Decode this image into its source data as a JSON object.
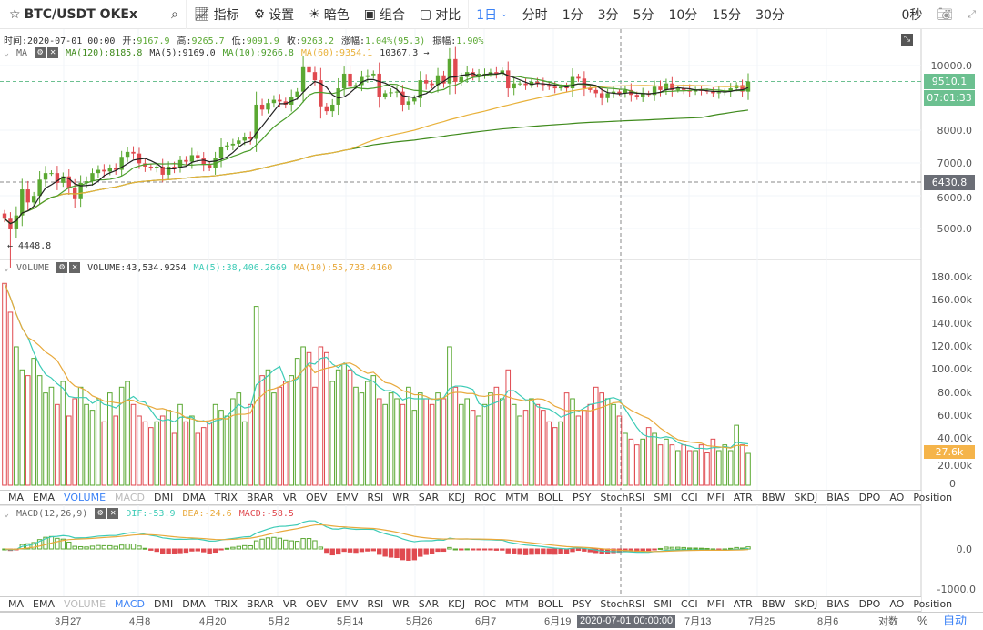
{
  "toolbar": {
    "star_icon": "star-icon",
    "symbol": "BTC/USDT OKEx",
    "search_icon": "search-icon",
    "indicators": "指标",
    "settings": "设置",
    "dark": "暗色",
    "combo": "组合",
    "compare": "对比",
    "interval": "1日",
    "intervals": [
      "分时",
      "1分",
      "3分",
      "5分",
      "10分",
      "15分",
      "30分"
    ],
    "countdown": "0秒",
    "camera_icon": "camera-icon",
    "fullscreen_icon": "fullscreen-icon"
  },
  "info": {
    "time_label": "时间:",
    "time": "2020-07-01 00:00",
    "open_label": "开:",
    "open": "9167.9",
    "high_label": "高:",
    "high": "9265.7",
    "low_label": "低:",
    "low": "9091.9",
    "close_label": "收:",
    "close": "9263.2",
    "change_label": "涨幅:",
    "change": "1.04%(95.3)",
    "amp_label": "振幅:",
    "amp": "1.90%"
  },
  "ma_legend": {
    "name": "MA",
    "ma120": "MA(120):8185.8",
    "ma5": "MA(5):9169.0",
    "ma10": "MA(10):9266.8",
    "ma60": "MA(60):9354.1",
    "max_marker": "10367.3 →",
    "min_marker": "← 4448.8"
  },
  "price_axis": {
    "ticks": [
      "10000.0",
      "8000.0",
      "7000.0",
      "6000.0",
      "5000.0"
    ],
    "last_price": "9510.1",
    "countdown": "07:01:33",
    "crosshair_price": "6430.8"
  },
  "volume_legend": {
    "name": "VOLUME",
    "volume": "VOLUME:43,534.9254",
    "ma5": "MA(5):38,406.2669",
    "ma10": "MA(10):55,733.4160"
  },
  "volume_axis": {
    "ticks": [
      "180.00k",
      "160.00k",
      "140.00k",
      "120.00k",
      "100.00k",
      "80.00k",
      "60.00k",
      "40.00k",
      "20.00k",
      "0"
    ],
    "last": "27.6k"
  },
  "indicator_tabs": [
    "MA",
    "EMA",
    "VOLUME",
    "MACD",
    "DMI",
    "DMA",
    "TRIX",
    "BRAR",
    "VR",
    "OBV",
    "EMV",
    "RSI",
    "WR",
    "SAR",
    "KDJ",
    "ROC",
    "MTM",
    "BOLL",
    "PSY",
    "StochRSI",
    "SMI",
    "CCI",
    "MFI",
    "ATR",
    "BBW",
    "SKDJ",
    "BIAS",
    "DPO",
    "AO",
    "Position"
  ],
  "macd_legend": {
    "name": "MACD(12,26,9)",
    "dif": "DIF:-53.9",
    "dea": "DEA:-24.6",
    "macd": "MACD:-58.5"
  },
  "macd_axis": {
    "ticks": [
      "0.0",
      "-1000.0"
    ]
  },
  "time_axis": {
    "ticks": [
      "3月27",
      "4月8",
      "4月20",
      "5月2",
      "5月14",
      "5月26",
      "6月7",
      "6月19",
      "7月13",
      "7月25",
      "8月6"
    ],
    "crosshair": "2020-07-01 00:00:00",
    "log": "对数",
    "percent": "%",
    "auto": "自动"
  },
  "colors": {
    "up": "#5aa832",
    "down": "#e04a50",
    "ma5": "#222222",
    "ma10": "#4c9e2c",
    "ma60": "#e8b13a",
    "ma120": "#3f8a1c",
    "vol_ma5": "#3ccbb6",
    "vol_ma10": "#e8a93c",
    "accent": "#3b82f6"
  },
  "chart_data": {
    "type": "candlestick",
    "closes": [
      5300,
      5000,
      5400,
      6200,
      5800,
      6000,
      6500,
      6700,
      6700,
      6400,
      6600,
      6250,
      5900,
      6400,
      6450,
      6700,
      6800,
      6750,
      6850,
      6800,
      7200,
      7350,
      7300,
      7000,
      6900,
      6850,
      6900,
      6650,
      6900,
      6850,
      7100,
      7050,
      7250,
      7150,
      6950,
      6850,
      7150,
      7500,
      7550,
      7600,
      7700,
      7800,
      7750,
      8800,
      8650,
      8850,
      8950,
      8900,
      8800,
      9050,
      9200,
      9950,
      9800,
      9550,
      8750,
      8600,
      8800,
      9300,
      9750,
      9350,
      9400,
      9650,
      9700,
      9750,
      9050,
      9150,
      9180,
      9200,
      8800,
      8900,
      9000,
      9550,
      9450,
      9400,
      9700,
      9450,
      10200,
      9500,
      9650,
      9800,
      9650,
      9750,
      9750,
      9800,
      9750,
      9850,
      9300,
      9450,
      9450,
      9400,
      9500,
      9450,
      9400,
      9350,
      9300,
      9350,
      9300,
      9650,
      9600,
      9300,
      9250,
      9150,
      9000,
      9150,
      9200,
      9150,
      9250,
      9100,
      9050,
      9150,
      9100,
      9350,
      9250,
      9450,
      9250,
      9300,
      9250,
      9200,
      9250,
      9230,
      9200,
      9150,
      9180,
      9200,
      9300,
      9400,
      9200,
      9510
    ],
    "volumes_k": [
      175,
      150,
      120,
      100,
      95,
      110,
      95,
      80,
      85,
      70,
      90,
      60,
      75,
      85,
      70,
      65,
      75,
      55,
      80,
      60,
      85,
      90,
      70,
      60,
      55,
      50,
      55,
      60,
      65,
      45,
      70,
      55,
      60,
      45,
      50,
      55,
      70,
      65,
      60,
      75,
      80,
      55,
      70,
      155,
      95,
      100,
      80,
      85,
      90,
      95,
      110,
      120,
      115,
      85,
      120,
      115,
      90,
      100,
      105,
      100,
      85,
      80,
      90,
      95,
      75,
      70,
      80,
      75,
      70,
      85,
      65,
      80,
      75,
      70,
      80,
      75,
      120,
      85,
      70,
      75,
      65,
      60,
      70,
      80,
      85,
      75,
      100,
      70,
      60,
      65,
      75,
      70,
      65,
      55,
      50,
      55,
      80,
      75,
      60,
      65,
      70,
      85,
      80,
      75,
      70,
      60,
      45,
      40,
      35,
      40,
      50,
      45,
      35,
      40,
      35,
      30,
      35,
      30,
      30,
      35,
      28,
      40,
      30,
      35,
      30,
      52,
      35,
      27.6
    ]
  }
}
